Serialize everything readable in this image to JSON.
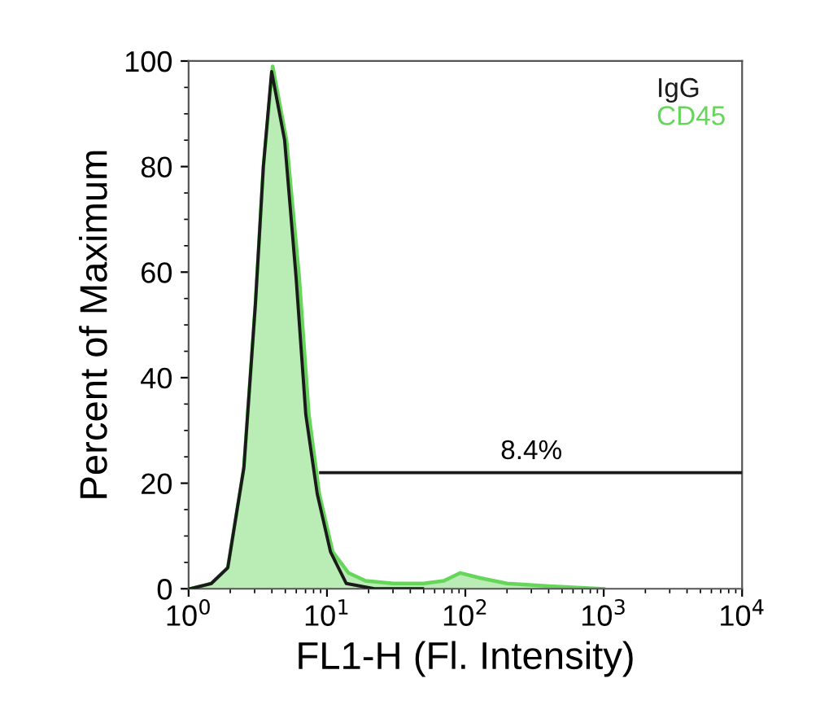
{
  "chart_data": {
    "type": "area",
    "xlabel": "FL1-H (Fl. Intensity)",
    "ylabel": "Percent of Maximum",
    "log": "x",
    "xlim": [
      1,
      10000
    ],
    "xticks": [
      {
        "value": 1,
        "label": "10$^{0}$"
      },
      {
        "value": 10,
        "label": "10$^{1}$"
      },
      {
        "value": 100,
        "label": "10$^{2}$"
      },
      {
        "value": 1000,
        "label": "10$^{3}$"
      },
      {
        "value": 10000,
        "label": "10$^{4}$"
      }
    ],
    "ylim": [
      0,
      100
    ],
    "yticks": [
      0,
      20,
      40,
      60,
      80,
      100
    ],
    "grid": false,
    "legend": "top right",
    "annotations": [
      {
        "text": "8.4%",
        "x": 300,
        "y": 22
      }
    ],
    "series": [
      {
        "name": "CD45",
        "color": "#66d65a",
        "x": [
          1.03,
          1.46,
          1.92,
          2.51,
          3.04,
          3.47,
          4.05,
          5.1,
          6.3,
          7.4,
          8.8,
          11.0,
          14.3,
          19,
          30,
          50,
          70,
          92,
          130,
          200,
          400,
          1000
        ],
        "values": [
          0,
          1,
          4,
          23,
          54,
          80,
          99,
          85,
          59,
          33,
          18,
          7,
          3,
          1.5,
          1,
          1,
          1.5,
          3,
          2,
          1,
          0.5,
          0
        ]
      },
      {
        "name": "IgG",
        "type": "line",
        "color": "#1a1a1a",
        "x": [
          1.03,
          1.46,
          1.92,
          2.51,
          3.04,
          3.47,
          3.98,
          4.94,
          5.98,
          7.03,
          8.5,
          10.6,
          13.8,
          22,
          49
        ],
        "values": [
          0,
          1,
          4,
          23,
          54,
          80,
          98,
          85,
          59,
          33,
          18,
          7,
          1,
          0,
          0
        ]
      },
      {
        "type": "line",
        "color": "#1a1a1a",
        "x": [
          9,
          10000
        ],
        "values": [
          22,
          22
        ]
      }
    ]
  }
}
